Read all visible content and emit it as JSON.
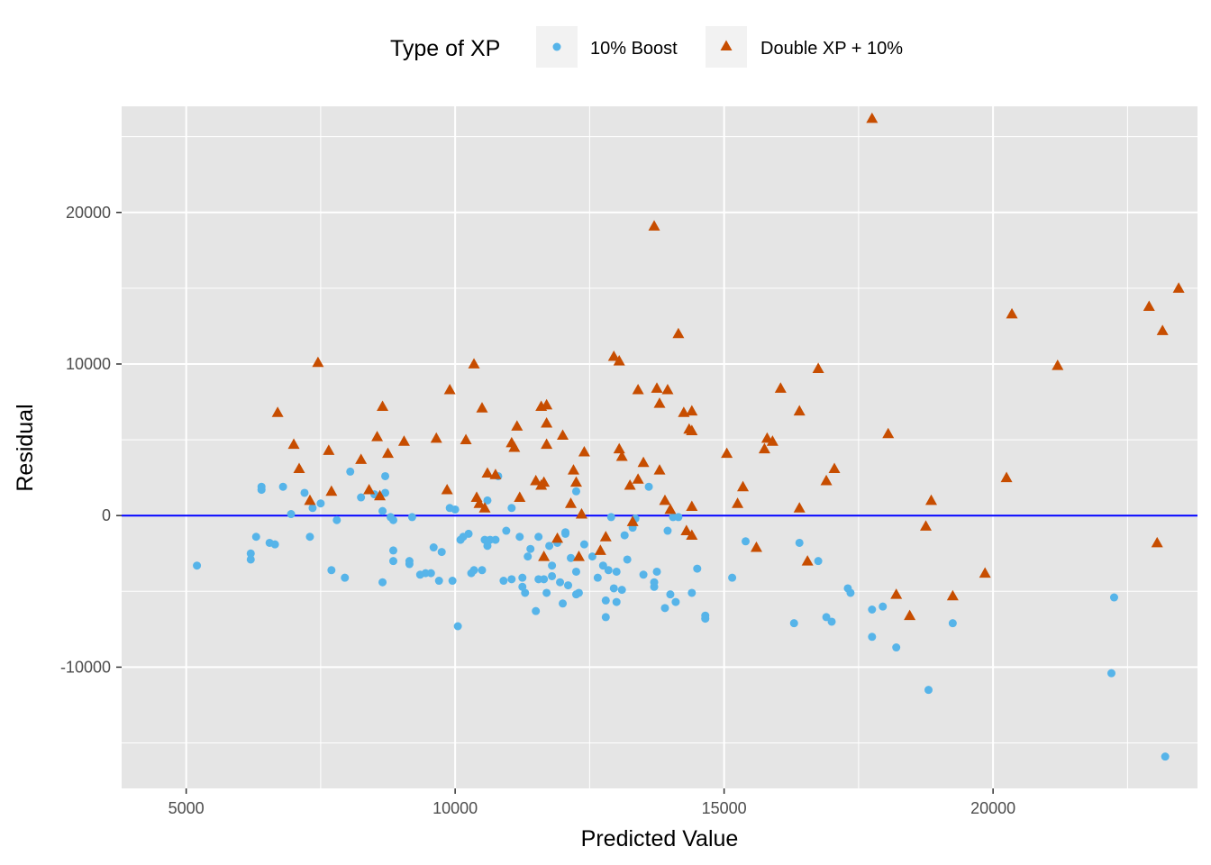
{
  "chart_data": {
    "type": "scatter",
    "xlabel": "Predicted Value",
    "ylabel": "Residual",
    "xlim": [
      3800,
      23800
    ],
    "ylim": [
      -18000,
      27000
    ],
    "x_ticks": [
      5000,
      10000,
      15000,
      20000
    ],
    "y_ticks": [
      -10000,
      0,
      10000,
      20000
    ],
    "x_tick_labels": [
      "5000",
      "10000",
      "15000",
      "20000"
    ],
    "y_tick_labels": [
      "-10000",
      "0",
      "10000",
      "20000"
    ],
    "grid": true,
    "reference_line": {
      "y": 0,
      "color": "#0000ff"
    },
    "legend": {
      "title": "Type of XP",
      "position": "top",
      "entries": [
        "10% Boost",
        "Double XP + 10%"
      ]
    },
    "series": [
      {
        "name": "10% Boost",
        "marker": "circle",
        "color": "#56b4e9",
        "points": [
          [
            5200,
            -3300
          ],
          [
            6200,
            -2500
          ],
          [
            6200,
            -2900
          ],
          [
            6300,
            -1400
          ],
          [
            6400,
            1900
          ],
          [
            6400,
            1700
          ],
          [
            6550,
            -1800
          ],
          [
            6650,
            -1900
          ],
          [
            6800,
            1900
          ],
          [
            6950,
            100
          ],
          [
            7200,
            1500
          ],
          [
            7300,
            -1400
          ],
          [
            7350,
            500
          ],
          [
            7500,
            800
          ],
          [
            7700,
            -3600
          ],
          [
            7800,
            -300
          ],
          [
            7950,
            -4100
          ],
          [
            8050,
            2900
          ],
          [
            8250,
            1200
          ],
          [
            8500,
            1400
          ],
          [
            8650,
            -4400
          ],
          [
            8650,
            300
          ],
          [
            8700,
            1500
          ],
          [
            8700,
            2600
          ],
          [
            8800,
            -100
          ],
          [
            8850,
            -300
          ],
          [
            8850,
            -2300
          ],
          [
            8850,
            -3000
          ],
          [
            9150,
            -3000
          ],
          [
            9150,
            -3200
          ],
          [
            9200,
            -100
          ],
          [
            9350,
            -3900
          ],
          [
            9450,
            -3800
          ],
          [
            9550,
            -3800
          ],
          [
            9600,
            -2100
          ],
          [
            9700,
            -4300
          ],
          [
            9750,
            -2400
          ],
          [
            9900,
            500
          ],
          [
            9950,
            -4300
          ],
          [
            10000,
            400
          ],
          [
            10050,
            -7300
          ],
          [
            10100,
            -1600
          ],
          [
            10150,
            -1400
          ],
          [
            10250,
            -1200
          ],
          [
            10300,
            -3800
          ],
          [
            10350,
            -3600
          ],
          [
            10500,
            -3600
          ],
          [
            10550,
            -1600
          ],
          [
            10600,
            -2000
          ],
          [
            10600,
            1000
          ],
          [
            10650,
            -1600
          ],
          [
            10750,
            -1600
          ],
          [
            10800,
            2600
          ],
          [
            10900,
            -4300
          ],
          [
            10950,
            -1000
          ],
          [
            11050,
            -4200
          ],
          [
            11050,
            500
          ],
          [
            11200,
            -1400
          ],
          [
            11250,
            -4100
          ],
          [
            11250,
            -4700
          ],
          [
            11300,
            -5100
          ],
          [
            11350,
            -2700
          ],
          [
            11400,
            -2200
          ],
          [
            11500,
            -6300
          ],
          [
            11550,
            -4200
          ],
          [
            11550,
            -1400
          ],
          [
            11650,
            -4200
          ],
          [
            11700,
            -5100
          ],
          [
            11750,
            -2000
          ],
          [
            11800,
            -3300
          ],
          [
            11800,
            -4000
          ],
          [
            11900,
            -1800
          ],
          [
            11950,
            -4400
          ],
          [
            12000,
            -5800
          ],
          [
            12050,
            -1100
          ],
          [
            12050,
            -1200
          ],
          [
            12100,
            -4600
          ],
          [
            12150,
            -2800
          ],
          [
            12250,
            -5200
          ],
          [
            12250,
            -3700
          ],
          [
            12250,
            1600
          ],
          [
            12300,
            -5100
          ],
          [
            12400,
            -1900
          ],
          [
            12550,
            -2700
          ],
          [
            12650,
            -4100
          ],
          [
            12750,
            -3300
          ],
          [
            12800,
            -5600
          ],
          [
            12800,
            -6700
          ],
          [
            12850,
            -3600
          ],
          [
            12900,
            -100
          ],
          [
            12950,
            -4800
          ],
          [
            13000,
            -3700
          ],
          [
            13000,
            -5700
          ],
          [
            13100,
            -4900
          ],
          [
            13150,
            -1300
          ],
          [
            13200,
            -2900
          ],
          [
            13300,
            -800
          ],
          [
            13350,
            -200
          ],
          [
            13500,
            -3900
          ],
          [
            13600,
            1900
          ],
          [
            13700,
            -4700
          ],
          [
            13700,
            -4400
          ],
          [
            13750,
            -3700
          ],
          [
            13900,
            -6100
          ],
          [
            13950,
            -1000
          ],
          [
            14000,
            -5200
          ],
          [
            14050,
            -100
          ],
          [
            14100,
            -5700
          ],
          [
            14150,
            -100
          ],
          [
            14400,
            -5100
          ],
          [
            14500,
            -3500
          ],
          [
            14650,
            -6800
          ],
          [
            14650,
            -6600
          ],
          [
            15150,
            -4100
          ],
          [
            15400,
            -1700
          ],
          [
            16300,
            -7100
          ],
          [
            16400,
            -1800
          ],
          [
            16750,
            -3000
          ],
          [
            16900,
            -6700
          ],
          [
            17000,
            -7000
          ],
          [
            17300,
            -4800
          ],
          [
            17350,
            -5100
          ],
          [
            17750,
            -6200
          ],
          [
            17750,
            -8000
          ],
          [
            17950,
            -6000
          ],
          [
            18200,
            -8700
          ],
          [
            18800,
            -11500
          ],
          [
            19250,
            -7100
          ],
          [
            22200,
            -10400
          ],
          [
            22250,
            -5400
          ],
          [
            23200,
            -15900
          ]
        ]
      },
      {
        "name": "Double XP + 10%",
        "marker": "triangle",
        "color": "#c74d00",
        "points": [
          [
            6700,
            6800
          ],
          [
            7000,
            4700
          ],
          [
            7100,
            3100
          ],
          [
            7300,
            1000
          ],
          [
            7450,
            10100
          ],
          [
            7650,
            4300
          ],
          [
            7700,
            1600
          ],
          [
            8250,
            3700
          ],
          [
            8400,
            1700
          ],
          [
            8550,
            5200
          ],
          [
            8600,
            1300
          ],
          [
            8650,
            7200
          ],
          [
            8750,
            4100
          ],
          [
            9050,
            4900
          ],
          [
            9650,
            5100
          ],
          [
            9850,
            1700
          ],
          [
            9900,
            8300
          ],
          [
            10200,
            5000
          ],
          [
            10350,
            10000
          ],
          [
            10400,
            1200
          ],
          [
            10450,
            800
          ],
          [
            10500,
            7100
          ],
          [
            10550,
            500
          ],
          [
            10600,
            2800
          ],
          [
            10750,
            2700
          ],
          [
            11050,
            4800
          ],
          [
            11100,
            4500
          ],
          [
            11150,
            5900
          ],
          [
            11200,
            1200
          ],
          [
            11500,
            2300
          ],
          [
            11600,
            2000
          ],
          [
            11600,
            7200
          ],
          [
            11650,
            2200
          ],
          [
            11650,
            -2700
          ],
          [
            11700,
            6100
          ],
          [
            11700,
            4700
          ],
          [
            11700,
            7300
          ],
          [
            11900,
            -1500
          ],
          [
            12000,
            5300
          ],
          [
            12150,
            800
          ],
          [
            12200,
            3000
          ],
          [
            12250,
            2200
          ],
          [
            12300,
            -2700
          ],
          [
            12350,
            100
          ],
          [
            12400,
            4200
          ],
          [
            12700,
            -2300
          ],
          [
            12800,
            -1400
          ],
          [
            12950,
            10500
          ],
          [
            13050,
            10200
          ],
          [
            13100,
            3900
          ],
          [
            13050,
            4400
          ],
          [
            13250,
            2000
          ],
          [
            13300,
            -400
          ],
          [
            13400,
            2400
          ],
          [
            13400,
            8300
          ],
          [
            13500,
            3500
          ],
          [
            13700,
            19100
          ],
          [
            13750,
            8400
          ],
          [
            13800,
            3000
          ],
          [
            13800,
            7400
          ],
          [
            13900,
            1000
          ],
          [
            13950,
            8300
          ],
          [
            14000,
            400
          ],
          [
            14150,
            12000
          ],
          [
            14250,
            6800
          ],
          [
            14300,
            -1000
          ],
          [
            14350,
            5700
          ],
          [
            14400,
            5600
          ],
          [
            14400,
            6900
          ],
          [
            14400,
            -1300
          ],
          [
            14400,
            600
          ],
          [
            15050,
            4100
          ],
          [
            15250,
            800
          ],
          [
            15350,
            1900
          ],
          [
            15600,
            -2100
          ],
          [
            15750,
            4400
          ],
          [
            15800,
            5100
          ],
          [
            15900,
            4900
          ],
          [
            16050,
            8400
          ],
          [
            16400,
            6900
          ],
          [
            16400,
            500
          ],
          [
            16550,
            -3000
          ],
          [
            16750,
            9700
          ],
          [
            16900,
            2300
          ],
          [
            17050,
            3100
          ],
          [
            17750,
            26200
          ],
          [
            18050,
            5400
          ],
          [
            18200,
            -5200
          ],
          [
            18450,
            -6600
          ],
          [
            18750,
            -700
          ],
          [
            18850,
            1000
          ],
          [
            19250,
            -5300
          ],
          [
            19850,
            -3800
          ],
          [
            20250,
            2500
          ],
          [
            20350,
            13300
          ],
          [
            21200,
            9900
          ],
          [
            22900,
            13800
          ],
          [
            23050,
            -1800
          ],
          [
            23150,
            12200
          ],
          [
            23450,
            15000
          ]
        ]
      }
    ]
  },
  "colors": {
    "panel_bg": "#e5e5e5",
    "grid_major": "#ffffff",
    "legend_key_bg": "#f2f2f2"
  }
}
